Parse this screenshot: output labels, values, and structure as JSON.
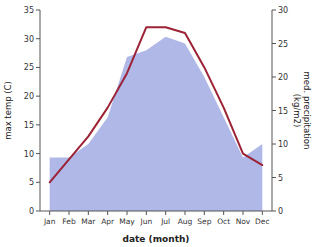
{
  "chart_data": {
    "type": "line",
    "categories": [
      "Jan",
      "Feb",
      "Mar",
      "Apr",
      "May",
      "Jun",
      "Jul",
      "Aug",
      "Sep",
      "Oct",
      "Nov",
      "Dec"
    ],
    "xlabel": "date (month)",
    "ylabel": "max temp (C)",
    "y2label": "med. precipitation\n(kg/m2)",
    "series": [
      {
        "type": "area",
        "axis": "y2",
        "color": "#b0b8e8",
        "values": [
          8,
          8,
          10,
          14,
          23,
          24,
          26,
          25,
          20,
          14,
          8,
          10
        ]
      },
      {
        "type": "line",
        "color": "#9b2335",
        "values": [
          5,
          9,
          13,
          18,
          24,
          32,
          32,
          31,
          25,
          18,
          10,
          8
        ]
      }
    ],
    "ylim": [
      0,
      35
    ],
    "yticks": [
      0,
      5,
      10,
      15,
      20,
      25,
      30,
      35
    ],
    "y2lim": [
      0,
      30
    ],
    "y2ticks": [
      0,
      5,
      10,
      15,
      20,
      25,
      30
    ],
    "grid": false
  }
}
